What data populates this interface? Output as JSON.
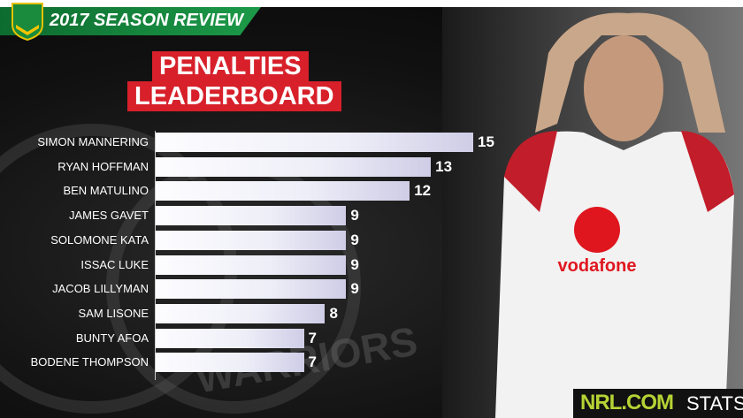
{
  "header": {
    "logo_text": "NRL",
    "banner_title": "2017 SEASON REVIEW"
  },
  "title": {
    "line1": "PENALTIES",
    "line2": "LEADERBOARD"
  },
  "background_watermark": "WARRIORS",
  "sponsor": "vodafone",
  "footer": {
    "brand": "NRL.COM",
    "suffix": "STATS"
  },
  "colors": {
    "banner": "#1c9a48",
    "title_bg": "#d7202a",
    "stats_green": "#b5d334"
  },
  "chart_data": {
    "type": "bar",
    "orientation": "horizontal",
    "title": "PENALTIES LEADERBOARD",
    "categories": [
      "SIMON MANNERING",
      "RYAN HOFFMAN",
      "BEN MATULINO",
      "JAMES GAVET",
      "SOLOMONE KATA",
      "ISSAC LUKE",
      "JACOB LILLYMAN",
      "SAM LISONE",
      "BUNTY AFOA",
      "BODENE THOMPSON"
    ],
    "values": [
      15,
      13,
      12,
      9,
      9,
      9,
      9,
      8,
      7,
      7
    ],
    "xlim": [
      0,
      15
    ],
    "grid": false,
    "data_labels": true
  }
}
